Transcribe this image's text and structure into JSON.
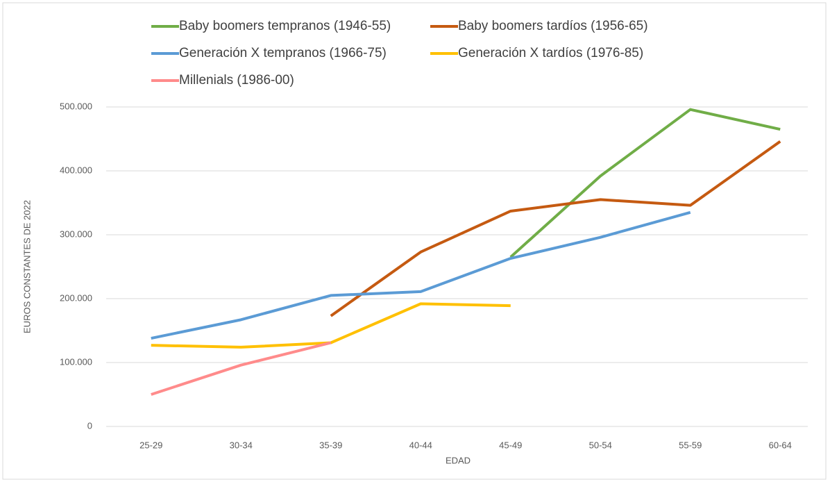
{
  "chart_data": {
    "type": "line",
    "xlabel": "EDAD",
    "ylabel": "EUROS CONSTANTES DE 2022",
    "categories": [
      "25-29",
      "30-34",
      "35-39",
      "40-44",
      "45-49",
      "50-54",
      "55-59",
      "60-64"
    ],
    "series": [
      {
        "name": "Baby boomers tempranos (1946-55)",
        "color": "#70ad47",
        "values": [
          null,
          null,
          null,
          null,
          265000,
          392000,
          496000,
          465000
        ]
      },
      {
        "name": "Baby boomers tardíos (1956-65)",
        "color": "#c55a11",
        "values": [
          null,
          null,
          173000,
          273000,
          337000,
          355000,
          346000,
          446000
        ]
      },
      {
        "name": "Generación X tempranos (1966-75)",
        "color": "#5b9bd5",
        "values": [
          138000,
          167000,
          205000,
          211000,
          263000,
          296000,
          335000,
          null
        ]
      },
      {
        "name": "Generación X tardíos (1976-85)",
        "color": "#ffc000",
        "values": [
          127000,
          124000,
          131000,
          192000,
          189000,
          null,
          null,
          null
        ]
      },
      {
        "name": "Millenials (1986-00)",
        "color": "#ff8b8b",
        "values": [
          50000,
          96000,
          131000,
          null,
          null,
          null,
          null,
          null
        ]
      }
    ],
    "ylim": [
      0,
      500000
    ],
    "yticks": [
      0,
      {
        "value": 100000,
        "label": "100.000"
      },
      {
        "value": 200000,
        "label": "200.000"
      },
      {
        "value": 300000,
        "label": "300.000"
      },
      {
        "value": 400000,
        "label": "400.000"
      },
      {
        "value": 500000,
        "label": "500.000"
      }
    ],
    "grid": true
  }
}
